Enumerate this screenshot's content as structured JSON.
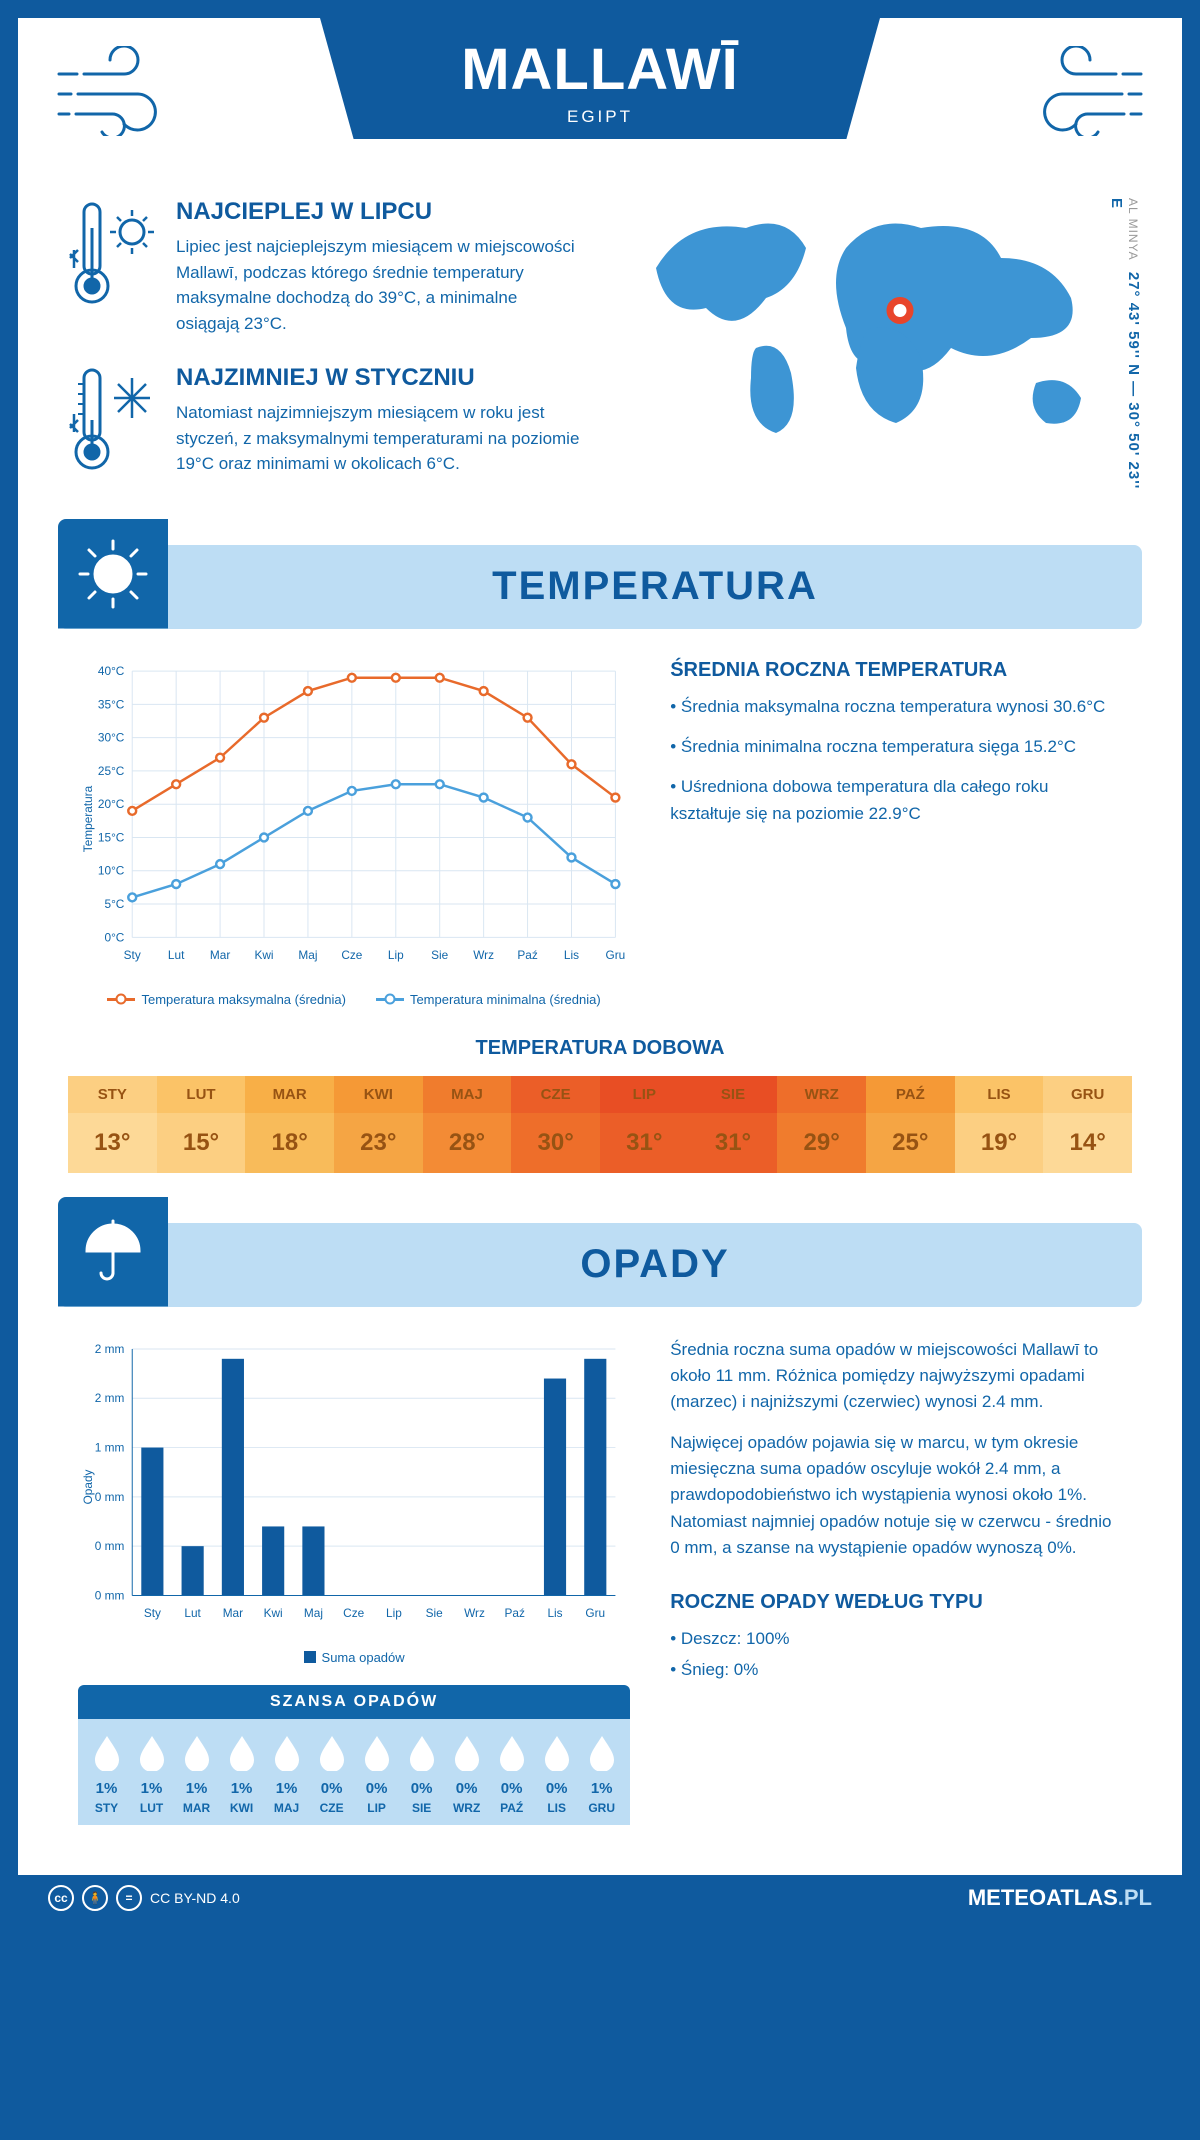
{
  "header": {
    "title": "MALLAWĪ",
    "subtitle": "EGIPT"
  },
  "intro": {
    "warm_title": "NAJCIEPLEJ W LIPCU",
    "warm_text": "Lipiec jest najcieplejszym miesiącem w miejscowości Mallawī, podczas którego średnie temperatury maksymalne dochodzą do 39°C, a minimalne osiągają 23°C.",
    "cold_title": "NAJZIMNIEJ W STYCZNIU",
    "cold_text": "Natomiast najzimniejszym miesiącem w roku jest styczeń, z maksymalnymi temperaturami na poziomie 19°C oraz minimami w okolicach 6°C.",
    "coords": "27° 43' 59'' N — 30° 50' 23'' E",
    "region": "AL MINYA",
    "marker": {
      "lon_pct": 55,
      "lat_pct": 45
    }
  },
  "months_short": [
    "Sty",
    "Lut",
    "Mar",
    "Kwi",
    "Maj",
    "Cze",
    "Lip",
    "Sie",
    "Wrz",
    "Paź",
    "Lis",
    "Gru"
  ],
  "months_upper": [
    "STY",
    "LUT",
    "MAR",
    "KWI",
    "MAJ",
    "CZE",
    "LIP",
    "SIE",
    "WRZ",
    "PAŹ",
    "LIS",
    "GRU"
  ],
  "temperature": {
    "section_label": "TEMPERATURA",
    "chart": {
      "type": "line",
      "y_label": "Temperatura",
      "y_ticks": [
        "0°C",
        "5°C",
        "10°C",
        "15°C",
        "20°C",
        "25°C",
        "30°C",
        "35°C",
        "40°C"
      ],
      "y_min": 0,
      "y_max": 40,
      "grid_color": "#d9e6f2",
      "series": [
        {
          "key": "max",
          "label": "Temperatura maksymalna (średnia)",
          "color": "#e86a2b",
          "values": [
            19,
            23,
            27,
            33,
            37,
            39,
            39,
            39,
            37,
            33,
            26,
            21
          ]
        },
        {
          "key": "min",
          "label": "Temperatura minimalna (średnia)",
          "color": "#4aa0dc",
          "values": [
            6,
            8,
            11,
            15,
            19,
            22,
            23,
            23,
            21,
            18,
            12,
            8
          ]
        }
      ]
    },
    "aside_title": "ŚREDNIA ROCZNA TEMPERATURA",
    "aside_bullets": [
      "• Średnia maksymalna roczna temperatura wynosi 30.6°C",
      "• Średnia minimalna roczna temperatura sięga 15.2°C",
      "• Uśredniona dobowa temperatura dla całego roku kształtuje się na poziomie 22.9°C"
    ],
    "daily_title": "TEMPERATURA DOBOWA",
    "daily_values": [
      "13°",
      "15°",
      "18°",
      "23°",
      "28°",
      "30°",
      "31°",
      "31°",
      "29°",
      "25°",
      "19°",
      "14°"
    ],
    "daily_head_colors": [
      "#fccf82",
      "#fbc367",
      "#f8af47",
      "#f59936",
      "#f07c2d",
      "#eb5e28",
      "#e84e24",
      "#e84e24",
      "#ee6e2a",
      "#f59936",
      "#fbc367",
      "#fccf82"
    ],
    "daily_val_colors": [
      "#fdd997",
      "#fccf82",
      "#f8bb5a",
      "#f5a544",
      "#f38b35",
      "#ee6e2a",
      "#eb5e28",
      "#eb5e28",
      "#f07c2d",
      "#f5a544",
      "#fccf82",
      "#fdd997"
    ],
    "daily_text_color": "#975313"
  },
  "precip": {
    "section_label": "OPADY",
    "chart": {
      "type": "bar",
      "y_label": "Opady",
      "y_ticks": [
        "0 mm",
        "0 mm",
        "0 mm",
        "1 mm",
        "2 mm",
        "2 mm"
      ],
      "y_min": 0,
      "y_max": 2.5,
      "grid_color": "#d9e6f2",
      "bar_color": "#0f5a9e",
      "bar_width": 0.55,
      "values": [
        1.5,
        0.5,
        2.4,
        0.7,
        0.7,
        0,
        0,
        0,
        0,
        0,
        2.2,
        2.4
      ],
      "legend_label": "Suma opadów"
    },
    "aside_paragraphs": [
      "Średnia roczna suma opadów w miejscowości Mallawī to około 11 mm. Różnica pomiędzy najwyższymi opadami (marzec) i najniższymi (czerwiec) wynosi 2.4 mm.",
      "Najwięcej opadów pojawia się w marcu, w tym okresie miesięczna suma opadów oscyluje wokół 2.4 mm, a prawdopodobieństwo ich wystąpienia wynosi około 1%. Natomiast najmniej opadów notuje się w czerwcu - średnio 0 mm, a szanse na wystąpienie opadów wynoszą 0%."
    ],
    "chance_title": "SZANSA OPADÓW",
    "chance_values": [
      "1%",
      "1%",
      "1%",
      "1%",
      "1%",
      "0%",
      "0%",
      "0%",
      "0%",
      "0%",
      "0%",
      "1%"
    ],
    "types_title": "ROCZNE OPADY WEDŁUG TYPU",
    "types": [
      "• Deszcz: 100%",
      "• Śnieg: 0%"
    ]
  },
  "footer": {
    "license": "CC BY-ND 4.0",
    "brand": "METEOATLAS",
    "tld": ".PL"
  }
}
